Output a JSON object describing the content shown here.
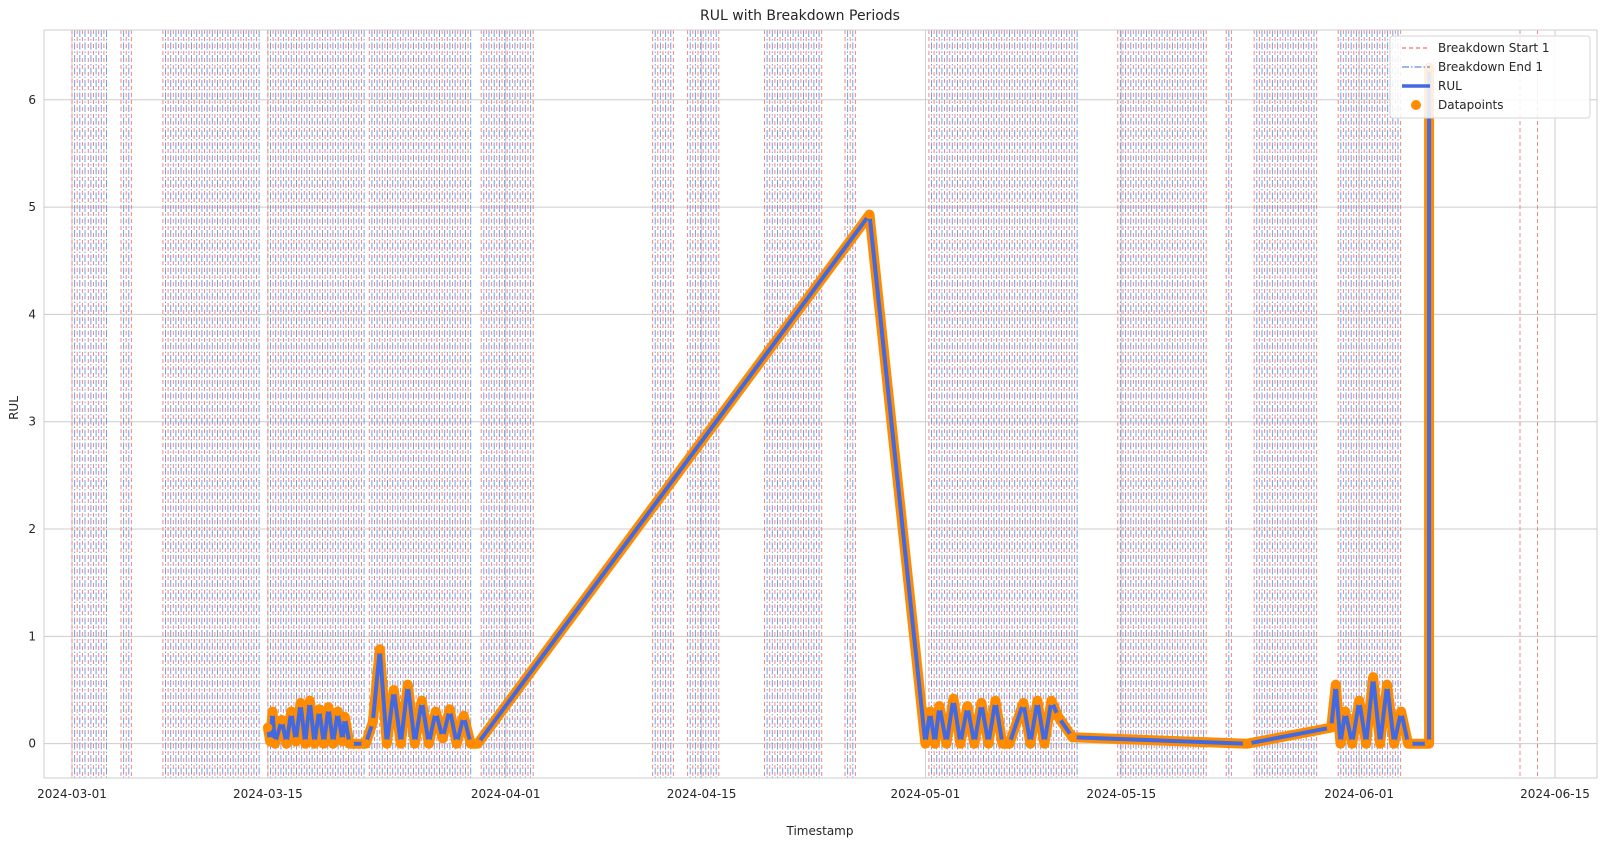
{
  "chart_data": {
    "type": "line",
    "title": "RUL with Breakdown Periods",
    "xlabel": "Timestamp",
    "ylabel": "RUL",
    "x_axis_kind": "date",
    "xlim": [
      "2024-02-28T00:00",
      "2024-06-18T00:00"
    ],
    "ylim": [
      -0.32,
      6.65
    ],
    "x_ticks": [
      "2024-03-01",
      "2024-03-15",
      "2024-04-01",
      "2024-04-15",
      "2024-05-01",
      "2024-05-15",
      "2024-06-01",
      "2024-06-15"
    ],
    "y_ticks": [
      0,
      1,
      2,
      3,
      4,
      5,
      6
    ],
    "grid": true,
    "legend_position": "top-right",
    "legend": [
      {
        "label": "Breakdown Start 1",
        "kind": "dashed-line",
        "color": "#f07070"
      },
      {
        "label": "Breakdown End 1",
        "kind": "dashdot-line",
        "color": "#5b8fdf"
      },
      {
        "label": "RUL",
        "kind": "line",
        "color": "#4169e1"
      },
      {
        "label": "Datapoints",
        "kind": "marker",
        "color": "#ff8c00"
      }
    ],
    "colors": {
      "breakdown_start": "#f07070",
      "breakdown_end": "#5b8fdf",
      "rul": "#4169e1",
      "datapoints": "#ff8c00"
    },
    "breakdown_regions": [
      [
        "2024-03-01T00:00",
        "2024-03-02T00:00"
      ],
      [
        "2024-03-02T04:00",
        "2024-03-03T12:00"
      ],
      [
        "2024-03-04T12:00",
        "2024-03-05T06:00"
      ],
      [
        "2024-03-07T12:00",
        "2024-03-14T12:00"
      ],
      [
        "2024-03-15T00:00",
        "2024-03-22T00:00"
      ],
      [
        "2024-03-22T06:00",
        "2024-03-29T12:00"
      ],
      [
        "2024-03-30T06:00",
        "2024-04-03T00:00"
      ],
      [
        "2024-04-11T12:00",
        "2024-04-13T00:00"
      ],
      [
        "2024-04-14T00:00",
        "2024-04-16T06:00"
      ],
      [
        "2024-04-19T12:00",
        "2024-04-23T18:00"
      ],
      [
        "2024-04-25T06:00",
        "2024-04-26T00:00"
      ],
      [
        "2024-05-01T06:00",
        "2024-05-12T00:00"
      ],
      [
        "2024-05-14T18:00",
        "2024-05-21T06:00"
      ],
      [
        "2024-05-22T12:00",
        "2024-05-23T00:00"
      ],
      [
        "2024-05-24T12:00",
        "2024-05-29T00:00"
      ],
      [
        "2024-05-30T12:00",
        "2024-06-04T00:00"
      ],
      [
        "2024-06-12T12:00",
        "2024-06-12T12:00"
      ],
      [
        "2024-06-13T18:00",
        "2024-06-13T18:00"
      ]
    ],
    "series": [
      {
        "name": "RUL",
        "points": [
          [
            "2024-03-15T00:00",
            0.15
          ],
          [
            "2024-03-15T04:00",
            0.02
          ],
          [
            "2024-03-15T08:00",
            0.3
          ],
          [
            "2024-03-15T12:00",
            0.0
          ],
          [
            "2024-03-16T00:00",
            0.22
          ],
          [
            "2024-03-16T08:00",
            0.0
          ],
          [
            "2024-03-16T16:00",
            0.3
          ],
          [
            "2024-03-17T00:00",
            0.02
          ],
          [
            "2024-03-17T08:00",
            0.38
          ],
          [
            "2024-03-17T16:00",
            0.0
          ],
          [
            "2024-03-18T00:00",
            0.4
          ],
          [
            "2024-03-18T08:00",
            0.0
          ],
          [
            "2024-03-18T16:00",
            0.32
          ],
          [
            "2024-03-19T00:00",
            0.0
          ],
          [
            "2024-03-19T08:00",
            0.34
          ],
          [
            "2024-03-19T16:00",
            0.0
          ],
          [
            "2024-03-20T00:00",
            0.3
          ],
          [
            "2024-03-20T08:00",
            0.02
          ],
          [
            "2024-03-20T12:00",
            0.25
          ],
          [
            "2024-03-20T20:00",
            0.0
          ],
          [
            "2024-03-22T00:00",
            0.0
          ],
          [
            "2024-03-22T12:00",
            0.2
          ],
          [
            "2024-03-23T00:00",
            0.88
          ],
          [
            "2024-03-23T12:00",
            0.0
          ],
          [
            "2024-03-24T00:00",
            0.5
          ],
          [
            "2024-03-24T12:00",
            0.0
          ],
          [
            "2024-03-25T00:00",
            0.55
          ],
          [
            "2024-03-25T12:00",
            0.0
          ],
          [
            "2024-03-26T00:00",
            0.4
          ],
          [
            "2024-03-26T12:00",
            0.0
          ],
          [
            "2024-03-27T00:00",
            0.3
          ],
          [
            "2024-03-27T12:00",
            0.05
          ],
          [
            "2024-03-28T00:00",
            0.32
          ],
          [
            "2024-03-28T12:00",
            0.0
          ],
          [
            "2024-03-29T00:00",
            0.26
          ],
          [
            "2024-03-29T12:00",
            0.0
          ],
          [
            "2024-03-30T00:00",
            0.0
          ],
          [
            "2024-04-27T00:00",
            4.93
          ],
          [
            "2024-05-01T00:00",
            0.0
          ],
          [
            "2024-05-01T08:00",
            0.3
          ],
          [
            "2024-05-01T16:00",
            0.0
          ],
          [
            "2024-05-02T00:00",
            0.35
          ],
          [
            "2024-05-02T12:00",
            0.0
          ],
          [
            "2024-05-03T00:00",
            0.42
          ],
          [
            "2024-05-03T12:00",
            0.0
          ],
          [
            "2024-05-04T00:00",
            0.35
          ],
          [
            "2024-05-04T12:00",
            0.0
          ],
          [
            "2024-05-05T00:00",
            0.38
          ],
          [
            "2024-05-05T12:00",
            0.0
          ],
          [
            "2024-05-06T00:00",
            0.4
          ],
          [
            "2024-05-06T12:00",
            0.0
          ],
          [
            "2024-05-07T00:00",
            0.0
          ],
          [
            "2024-05-08T00:00",
            0.38
          ],
          [
            "2024-05-08T12:00",
            0.0
          ],
          [
            "2024-05-09T00:00",
            0.4
          ],
          [
            "2024-05-09T12:00",
            0.0
          ],
          [
            "2024-05-10T00:00",
            0.4
          ],
          [
            "2024-05-10T12:00",
            0.25
          ],
          [
            "2024-05-11T12:00",
            0.06
          ],
          [
            "2024-05-24T00:00",
            0.0
          ],
          [
            "2024-05-30T00:00",
            0.15
          ],
          [
            "2024-05-30T08:00",
            0.55
          ],
          [
            "2024-05-30T16:00",
            0.0
          ],
          [
            "2024-05-31T00:00",
            0.3
          ],
          [
            "2024-05-31T12:00",
            0.0
          ],
          [
            "2024-06-01T00:00",
            0.4
          ],
          [
            "2024-06-01T12:00",
            0.0
          ],
          [
            "2024-06-02T00:00",
            0.62
          ],
          [
            "2024-06-02T12:00",
            0.0
          ],
          [
            "2024-06-03T00:00",
            0.55
          ],
          [
            "2024-06-03T12:00",
            0.0
          ],
          [
            "2024-06-04T00:00",
            0.3
          ],
          [
            "2024-06-04T12:00",
            0.0
          ],
          [
            "2024-06-06T00:00",
            0.0
          ],
          [
            "2024-06-06T00:00",
            6.3
          ]
        ]
      }
    ]
  }
}
